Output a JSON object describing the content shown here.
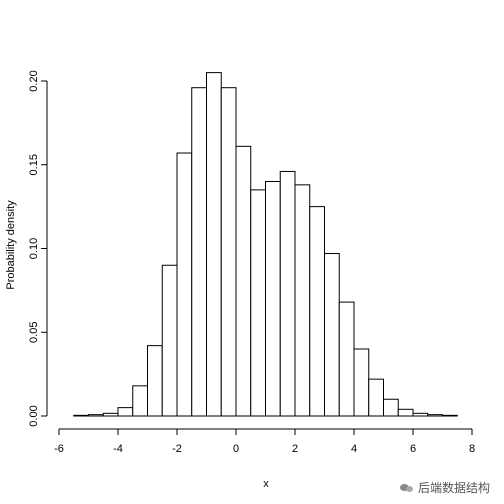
{
  "chart_data": {
    "type": "bar",
    "title": "",
    "xlabel": "x",
    "ylabel": "Probability density",
    "xlim": [
      -6,
      8
    ],
    "ylim": [
      0,
      0.2
    ],
    "xticks": [
      "-6",
      "-4",
      "-2",
      "0",
      "2",
      "4",
      "6",
      "8"
    ],
    "yticks": [
      "0.00",
      "0.05",
      "0.10",
      "0.15",
      "0.20"
    ],
    "grid": false,
    "bin_width": 0.5,
    "bins": [
      {
        "x0": -5.5,
        "x1": -5.0,
        "density": 0.0004
      },
      {
        "x0": -5.0,
        "x1": -4.5,
        "density": 0.0008
      },
      {
        "x0": -4.5,
        "x1": -4.0,
        "density": 0.0016
      },
      {
        "x0": -4.0,
        "x1": -3.5,
        "density": 0.005
      },
      {
        "x0": -3.5,
        "x1": -3.0,
        "density": 0.018
      },
      {
        "x0": -3.0,
        "x1": -2.5,
        "density": 0.042
      },
      {
        "x0": -2.5,
        "x1": -2.0,
        "density": 0.09
      },
      {
        "x0": -2.0,
        "x1": -1.5,
        "density": 0.157
      },
      {
        "x0": -1.5,
        "x1": -1.0,
        "density": 0.196
      },
      {
        "x0": -1.0,
        "x1": -0.5,
        "density": 0.205
      },
      {
        "x0": -0.5,
        "x1": 0.0,
        "density": 0.196
      },
      {
        "x0": 0.0,
        "x1": 0.5,
        "density": 0.161
      },
      {
        "x0": 0.5,
        "x1": 1.0,
        "density": 0.135
      },
      {
        "x0": 1.0,
        "x1": 1.5,
        "density": 0.14
      },
      {
        "x0": 1.5,
        "x1": 2.0,
        "density": 0.146
      },
      {
        "x0": 2.0,
        "x1": 2.5,
        "density": 0.138
      },
      {
        "x0": 2.5,
        "x1": 3.0,
        "density": 0.125
      },
      {
        "x0": 3.0,
        "x1": 3.5,
        "density": 0.097
      },
      {
        "x0": 3.5,
        "x1": 4.0,
        "density": 0.068
      },
      {
        "x0": 4.0,
        "x1": 4.5,
        "density": 0.04
      },
      {
        "x0": 4.5,
        "x1": 5.0,
        "density": 0.022
      },
      {
        "x0": 5.0,
        "x1": 5.5,
        "density": 0.01
      },
      {
        "x0": 5.5,
        "x1": 6.0,
        "density": 0.004
      },
      {
        "x0": 6.0,
        "x1": 6.5,
        "density": 0.0016
      },
      {
        "x0": 6.5,
        "x1": 7.0,
        "density": 0.0008
      },
      {
        "x0": 7.0,
        "x1": 7.5,
        "density": 0.0004
      }
    ]
  },
  "watermark": {
    "text": "后端数据结构"
  }
}
